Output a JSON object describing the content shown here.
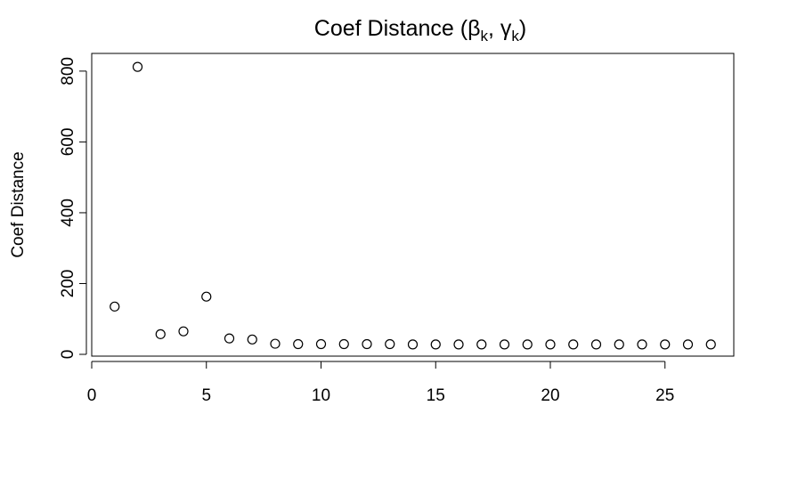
{
  "chart_data": {
    "type": "scatter",
    "title": {
      "prefix": "Coef Distance (",
      "greek1": "β",
      "sub1": "k",
      "sep": ", ",
      "greek2": "γ",
      "sub2": "k",
      "suffix": ")"
    },
    "xlabel": "",
    "ylabel": "Coef Distance",
    "xlim": [
      0,
      28
    ],
    "ylim": [
      -5,
      850
    ],
    "xticks": [
      0,
      5,
      10,
      15,
      20,
      25
    ],
    "yticks": [
      0,
      200,
      400,
      600,
      800
    ],
    "xtick_labels": [
      "0",
      "5",
      "10",
      "15",
      "20",
      "25"
    ],
    "ytick_labels": [
      "0",
      "200",
      "400",
      "600",
      "800"
    ],
    "grid": false,
    "marker": "open-circle",
    "colors": {
      "marker": "#000000",
      "axis": "#000000",
      "background": "#ffffff"
    },
    "x": [
      1,
      2,
      3,
      4,
      5,
      6,
      7,
      8,
      9,
      10,
      11,
      12,
      13,
      14,
      15,
      16,
      17,
      18,
      19,
      20,
      21,
      22,
      23,
      24,
      25,
      26,
      27
    ],
    "y": [
      135,
      812,
      57,
      65,
      163,
      45,
      42,
      30,
      29,
      29,
      29,
      29,
      29,
      28,
      28,
      28,
      28,
      28,
      28,
      28,
      28,
      28,
      28,
      28,
      28,
      28,
      28
    ]
  }
}
